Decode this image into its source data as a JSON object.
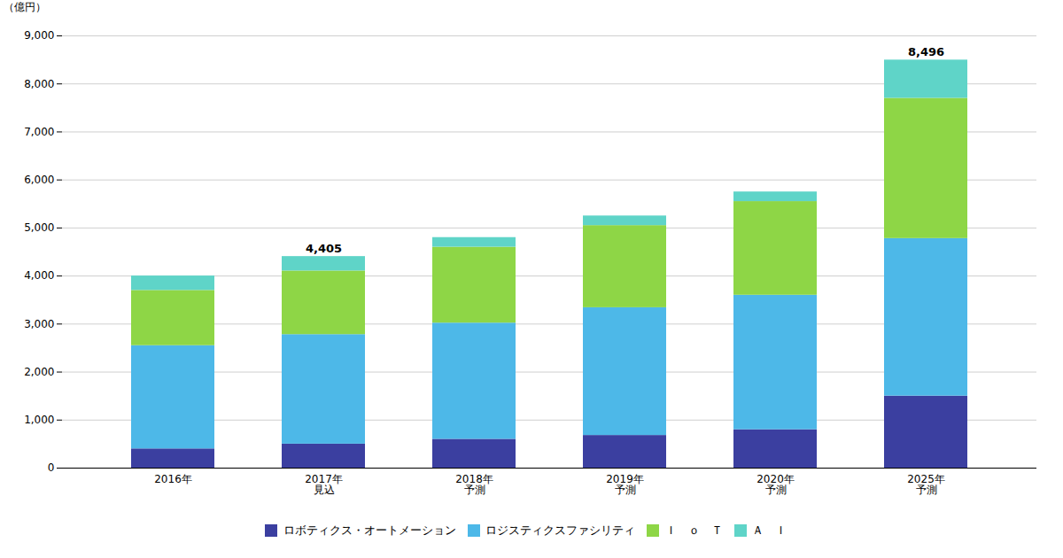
{
  "chart_data": {
    "type": "bar",
    "stacked": true,
    "categories": [
      "2016年",
      "2017年\n見込",
      "2018年\n予測",
      "2019年\n予測",
      "2020年\n予測",
      "2025年\n予測"
    ],
    "series": [
      {
        "name": "ロボティクス・オートメーション",
        "color": "#3b3fa0",
        "values": [
          400,
          500,
          600,
          680,
          800,
          1500
        ]
      },
      {
        "name": "ロジスティクスファシリティ",
        "color": "#4db8e8",
        "values": [
          2150,
          2280,
          2420,
          2660,
          2800,
          3280
        ]
      },
      {
        "name": "Ｉ　ｏ　Ｔ",
        "color": "#8ed646",
        "values": [
          1150,
          1325,
          1580,
          1710,
          1950,
          2920
        ]
      },
      {
        "name": "Ａ　Ｉ",
        "color": "#5fd4c8",
        "values": [
          300,
          300,
          200,
          200,
          200,
          796
        ]
      }
    ],
    "ylabel": "（億円）",
    "ylim": [
      0,
      9000
    ],
    "yticks": [
      0,
      {
        "value": 1000,
        "label": "1,000"
      },
      {
        "value": 2000,
        "label": "2,000"
      },
      {
        "value": 3000,
        "label": "3,000"
      },
      {
        "value": 4000,
        "label": "4,000"
      },
      {
        "value": 5000,
        "label": "5,000"
      },
      {
        "value": 6000,
        "label": "6,000"
      },
      {
        "value": 7000,
        "label": "7,000"
      },
      {
        "value": 8000,
        "label": "8,000"
      },
      {
        "value": 9000,
        "label": "9,000"
      }
    ],
    "grid": true,
    "legend": "bottom",
    "annotations": [
      {
        "text": "4,405",
        "x": "2017年\n見込",
        "y": 4405
      },
      {
        "text": "8,496",
        "x": "2025年\n予測",
        "y": 8496
      }
    ]
  }
}
